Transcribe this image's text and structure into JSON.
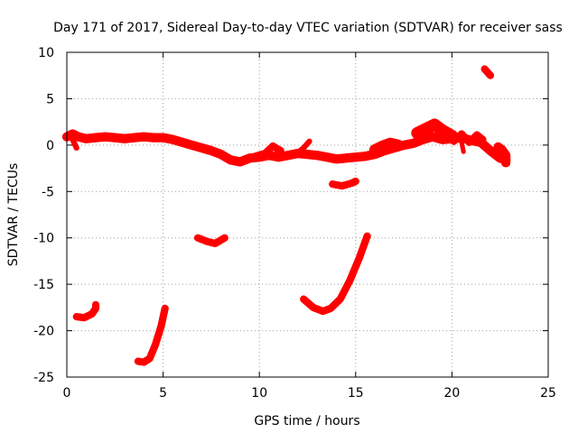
{
  "chart_data": {
    "type": "scatter",
    "title": "Day 171 of 2017, Sidereal Day-to-day VTEC variation (SDTVAR) for receiver sass",
    "xlabel": "GPS time / hours",
    "ylabel": "SDTVAR / TECUs",
    "xlim": [
      0,
      25
    ],
    "ylim": [
      -25,
      10
    ],
    "xticks": [
      0,
      5,
      10,
      15,
      20,
      25
    ],
    "yticks": [
      -25,
      -20,
      -15,
      -10,
      -5,
      0,
      5,
      10
    ],
    "grid": true,
    "color": "#ff0000",
    "series": [
      {
        "name": "main-band",
        "thickness": 1.0,
        "points": [
          [
            0.0,
            0.9
          ],
          [
            0.3,
            1.2
          ],
          [
            0.6,
            0.9
          ],
          [
            1.0,
            0.7
          ],
          [
            1.5,
            0.8
          ],
          [
            2.0,
            0.9
          ],
          [
            2.5,
            0.8
          ],
          [
            3.0,
            0.7
          ],
          [
            3.5,
            0.8
          ],
          [
            4.0,
            0.9
          ],
          [
            4.5,
            0.8
          ],
          [
            5.0,
            0.8
          ],
          [
            5.5,
            0.6
          ],
          [
            6.0,
            0.3
          ],
          [
            6.5,
            0.0
          ],
          [
            7.0,
            -0.3
          ],
          [
            7.5,
            -0.6
          ],
          [
            8.0,
            -1.0
          ],
          [
            8.5,
            -1.6
          ],
          [
            9.0,
            -1.8
          ],
          [
            9.5,
            -1.4
          ],
          [
            10.0,
            -1.3
          ],
          [
            10.5,
            -1.1
          ],
          [
            11.0,
            -1.3
          ],
          [
            11.5,
            -1.1
          ],
          [
            12.0,
            -0.9
          ],
          [
            12.5,
            -1.0
          ],
          [
            13.0,
            -1.1
          ],
          [
            13.5,
            -1.3
          ],
          [
            14.0,
            -1.5
          ],
          [
            14.5,
            -1.4
          ],
          [
            15.0,
            -1.3
          ],
          [
            15.5,
            -1.2
          ],
          [
            16.0,
            -1.0
          ],
          [
            16.5,
            -0.6
          ],
          [
            17.0,
            -0.3
          ],
          [
            17.5,
            0.0
          ],
          [
            18.0,
            0.2
          ],
          [
            18.5,
            0.6
          ],
          [
            19.0,
            0.9
          ],
          [
            19.5,
            0.6
          ],
          [
            20.0,
            0.7
          ],
          [
            20.5,
            0.8
          ],
          [
            21.0,
            0.5
          ],
          [
            21.5,
            0.3
          ],
          [
            22.0,
            -0.6
          ],
          [
            22.5,
            -1.4
          ],
          [
            22.8,
            -1.6
          ]
        ]
      },
      {
        "name": "spike-left-down",
        "thickness": 0.6,
        "points": [
          [
            0.3,
            0.6
          ],
          [
            0.5,
            -0.3
          ]
        ]
      },
      {
        "name": "bump-10.5",
        "thickness": 0.8,
        "points": [
          [
            9.8,
            -1.2
          ],
          [
            10.3,
            -0.9
          ],
          [
            10.7,
            -0.1
          ],
          [
            11.1,
            -0.6
          ]
        ]
      },
      {
        "name": "bump-12.5",
        "thickness": 0.6,
        "points": [
          [
            12.0,
            -0.8
          ],
          [
            12.3,
            -0.3
          ],
          [
            12.6,
            0.4
          ]
        ]
      },
      {
        "name": "blob-16.5",
        "thickness": 1.2,
        "points": [
          [
            16.0,
            -0.5
          ],
          [
            16.4,
            -0.1
          ],
          [
            16.8,
            0.2
          ],
          [
            17.2,
            0.0
          ]
        ]
      },
      {
        "name": "upper-18-20",
        "thickness": 1.3,
        "points": [
          [
            18.2,
            1.3
          ],
          [
            18.7,
            1.8
          ],
          [
            19.1,
            2.2
          ],
          [
            19.5,
            1.6
          ],
          [
            20.0,
            1.0
          ]
        ]
      },
      {
        "name": "wave-20-21",
        "thickness": 0.8,
        "points": [
          [
            20.1,
            0.4
          ],
          [
            20.5,
            1.2
          ],
          [
            20.9,
            0.3
          ],
          [
            21.3,
            1.1
          ],
          [
            21.6,
            0.6
          ]
        ]
      },
      {
        "name": "dip-20.5",
        "thickness": 0.5,
        "points": [
          [
            20.5,
            0.3
          ],
          [
            20.6,
            -0.7
          ]
        ]
      },
      {
        "name": "tail-22.5",
        "thickness": 1.0,
        "points": [
          [
            22.4,
            -0.2
          ],
          [
            22.6,
            -0.5
          ],
          [
            22.8,
            -1.1
          ],
          [
            22.8,
            -1.9
          ]
        ]
      },
      {
        "name": "segment-sat-a",
        "thickness": 0.8,
        "points": [
          [
            21.7,
            8.2
          ],
          [
            22.0,
            7.5
          ]
        ]
      },
      {
        "name": "segment-sat-b",
        "thickness": 0.8,
        "points": [
          [
            13.8,
            -4.2
          ],
          [
            14.3,
            -4.4
          ],
          [
            14.8,
            -4.1
          ],
          [
            15.0,
            -3.9
          ]
        ]
      },
      {
        "name": "segment-sat-c",
        "thickness": 0.8,
        "points": [
          [
            6.8,
            -10.0
          ],
          [
            7.3,
            -10.4
          ],
          [
            7.7,
            -10.6
          ],
          [
            8.2,
            -10.0
          ]
        ]
      },
      {
        "name": "segment-sat-d",
        "thickness": 0.8,
        "points": [
          [
            0.5,
            -18.5
          ],
          [
            0.9,
            -18.6
          ],
          [
            1.3,
            -18.2
          ],
          [
            1.5,
            -17.6
          ],
          [
            1.5,
            -17.2
          ]
        ]
      },
      {
        "name": "segment-sat-e",
        "thickness": 0.8,
        "points": [
          [
            3.7,
            -23.3
          ],
          [
            4.0,
            -23.4
          ],
          [
            4.3,
            -23.0
          ],
          [
            4.6,
            -21.5
          ],
          [
            4.9,
            -19.5
          ],
          [
            5.1,
            -17.6
          ]
        ]
      },
      {
        "name": "segment-sat-f",
        "thickness": 0.8,
        "points": [
          [
            12.3,
            -16.6
          ],
          [
            12.8,
            -17.5
          ],
          [
            13.3,
            -17.9
          ],
          [
            13.7,
            -17.6
          ],
          [
            14.2,
            -16.6
          ],
          [
            14.7,
            -14.6
          ],
          [
            15.2,
            -12.1
          ],
          [
            15.6,
            -9.8
          ]
        ]
      }
    ]
  }
}
